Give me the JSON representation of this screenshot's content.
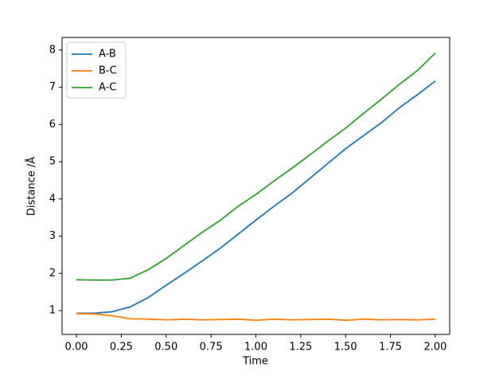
{
  "chart_data": {
    "type": "line",
    "xlabel": "Time",
    "ylabel": "Distance /Å",
    "x": [
      0,
      0.1,
      0.2,
      0.3,
      0.4,
      0.5,
      0.6,
      0.7,
      0.8,
      0.9,
      1.0,
      1.1,
      1.2,
      1.3,
      1.4,
      1.5,
      1.6,
      1.7,
      1.8,
      1.9,
      2.0
    ],
    "series": [
      {
        "name": "A-B",
        "color": "#1f77b4",
        "values": [
          0.93,
          0.93,
          0.97,
          1.1,
          1.35,
          1.68,
          2.0,
          2.33,
          2.67,
          3.05,
          3.43,
          3.8,
          4.15,
          4.55,
          4.95,
          5.35,
          5.7,
          6.05,
          6.45,
          6.8,
          7.17
        ]
      },
      {
        "name": "B-C",
        "color": "#ff7f0e",
        "values": [
          0.92,
          0.91,
          0.86,
          0.78,
          0.77,
          0.75,
          0.77,
          0.75,
          0.76,
          0.77,
          0.74,
          0.77,
          0.75,
          0.76,
          0.77,
          0.74,
          0.77,
          0.75,
          0.76,
          0.75,
          0.77
        ]
      },
      {
        "name": "A-C",
        "color": "#2ca02c",
        "values": [
          1.83,
          1.82,
          1.82,
          1.87,
          2.1,
          2.4,
          2.75,
          3.1,
          3.42,
          3.8,
          4.12,
          4.48,
          4.82,
          5.18,
          5.55,
          5.9,
          6.3,
          6.68,
          7.08,
          7.45,
          7.92
        ]
      }
    ],
    "xlim": [
      -0.08,
      2.08
    ],
    "ylim": [
      0.36,
      8.34
    ],
    "xticks": [
      {
        "value": 0,
        "label": "0.00"
      },
      {
        "value": 0.25,
        "label": "0.25"
      },
      {
        "value": 0.5,
        "label": "0.50"
      },
      {
        "value": 0.75,
        "label": "0.75"
      },
      {
        "value": 1.0,
        "label": "1.00"
      },
      {
        "value": 1.25,
        "label": "1.25"
      },
      {
        "value": 1.5,
        "label": "1.50"
      },
      {
        "value": 1.75,
        "label": "1.75"
      },
      {
        "value": 2.0,
        "label": "2.00"
      }
    ],
    "yticks": [
      1,
      2,
      3,
      4,
      5,
      6,
      7,
      8
    ],
    "legend": "upper-left"
  }
}
